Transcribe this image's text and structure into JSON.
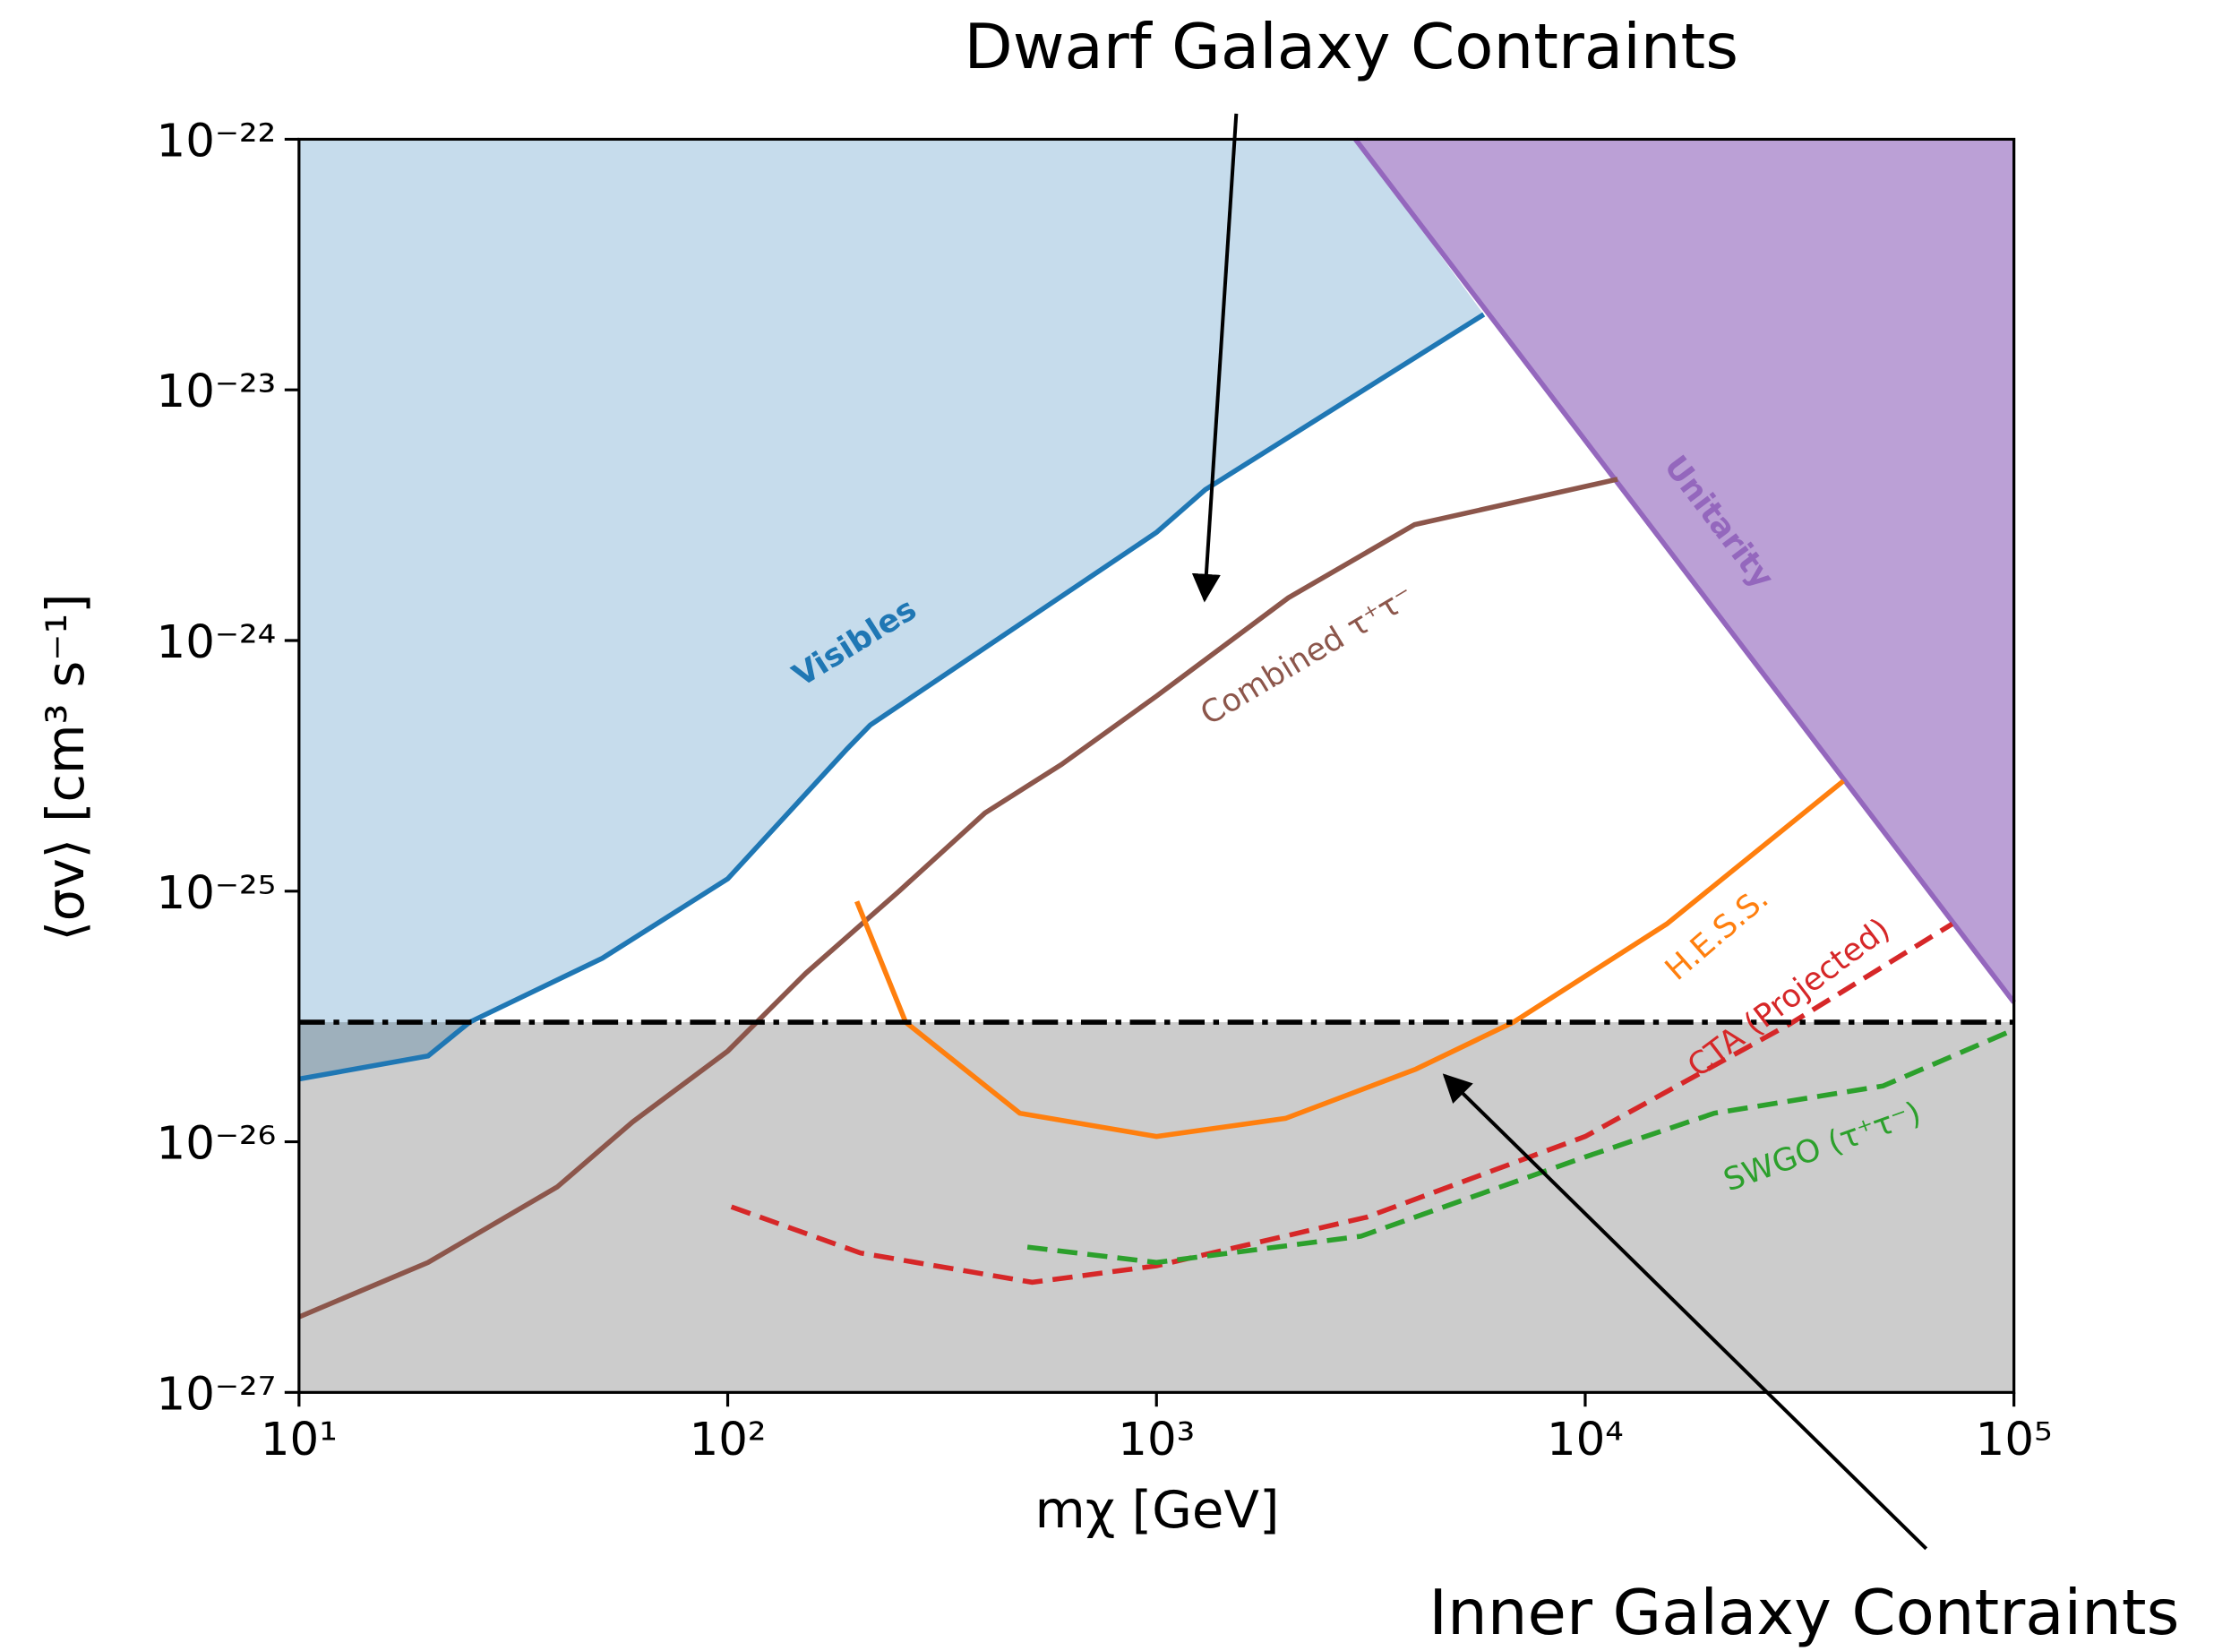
{
  "chart_data": {
    "type": "line",
    "annotations": [
      "Dwarf Galaxy Contraints",
      "Inner Galaxy Contraints"
    ],
    "xlabel": "mχ [GeV]",
    "ylabel": "⟨σv⟩ [cm³ s⁻¹]",
    "xscale": "log",
    "yscale": "log",
    "xlim": [
      10,
      100000
    ],
    "ylim": [
      1e-27,
      1e-22
    ],
    "xticks": [
      {
        "value": 10,
        "label": "10¹"
      },
      {
        "value": 100,
        "label": "10²"
      },
      {
        "value": 1000,
        "label": "10³"
      },
      {
        "value": 10000,
        "label": "10⁴"
      },
      {
        "value": 100000,
        "label": "10⁵"
      }
    ],
    "yticks": [
      {
        "value": 1e-27,
        "label": "10⁻²⁷"
      },
      {
        "value": 1e-26,
        "label": "10⁻²⁶"
      },
      {
        "value": 1e-25,
        "label": "10⁻²⁵"
      },
      {
        "value": 1e-24,
        "label": "10⁻²⁴"
      },
      {
        "value": 1e-23,
        "label": "10⁻²³"
      },
      {
        "value": 1e-22,
        "label": "10⁻²²"
      }
    ],
    "hline": 3e-26,
    "hline_color": "#000000",
    "hline_fill": "#000000",
    "series": [
      {
        "name": "Visibles",
        "color": "#1f77b4",
        "fill": "#c6dcec",
        "style": "solid",
        "x": [
          10,
          20,
          25,
          51,
          100,
          190,
          215,
          1000,
          1300,
          5800
        ],
        "values": [
          1.78e-26,
          2.2e-26,
          3e-26,
          5.4e-26,
          1.12e-25,
          3.7e-25,
          4.6e-25,
          2.7e-24,
          4e-24,
          2e-23
        ]
      },
      {
        "name": "Unitarity",
        "color": "#9467bd",
        "fill": "#bba0d6",
        "style": "solid",
        "x": [
          2911,
          100000
        ],
        "values": [
          1e-22,
          3.6e-26
        ]
      },
      {
        "name": "Combined τ⁺τ⁻",
        "color": "#8c564b",
        "style": "solid",
        "x": [
          10,
          20,
          40,
          60,
          100,
          152,
          251,
          398,
          600,
          1000,
          2030,
          4000,
          11900
        ],
        "values": [
          2e-27,
          3.3e-27,
          6.6e-27,
          1.2e-26,
          2.3e-26,
          4.7e-26,
          1e-25,
          2.05e-25,
          3.2e-25,
          6e-25,
          1.48e-24,
          2.9e-24,
          4.4e-24
        ]
      },
      {
        "name": "H.E.S.S.",
        "color": "#ff7f0e",
        "style": "solid",
        "x": [
          200,
          260,
          480,
          1000,
          2000,
          4030,
          6800,
          15500,
          40000
        ],
        "values": [
          9.1e-26,
          3e-26,
          1.3e-26,
          1.05e-26,
          1.24e-26,
          1.95e-26,
          3e-26,
          7.4e-26,
          2.75e-25
        ]
      },
      {
        "name": "CTA (Projected)",
        "color": "#d62728",
        "style": "dashed",
        "x": [
          102,
          204,
          513,
          1000,
          3090,
          10000,
          30000,
          71800
        ],
        "values": [
          5.5e-27,
          3.6e-27,
          2.75e-27,
          3.2e-27,
          5e-27,
          1.05e-26,
          2.95e-26,
          7.4e-26
        ]
      },
      {
        "name": "SWGO (τ⁺τ⁻)",
        "color": "#2ca02c",
        "style": "dashed",
        "x": [
          500,
          1000,
          3000,
          10000,
          20000,
          49500,
          100000
        ],
        "values": [
          3.8e-27,
          3.3e-27,
          4.2e-27,
          8.7e-27,
          1.3e-26,
          1.67e-26,
          2.8e-26
        ]
      }
    ]
  }
}
